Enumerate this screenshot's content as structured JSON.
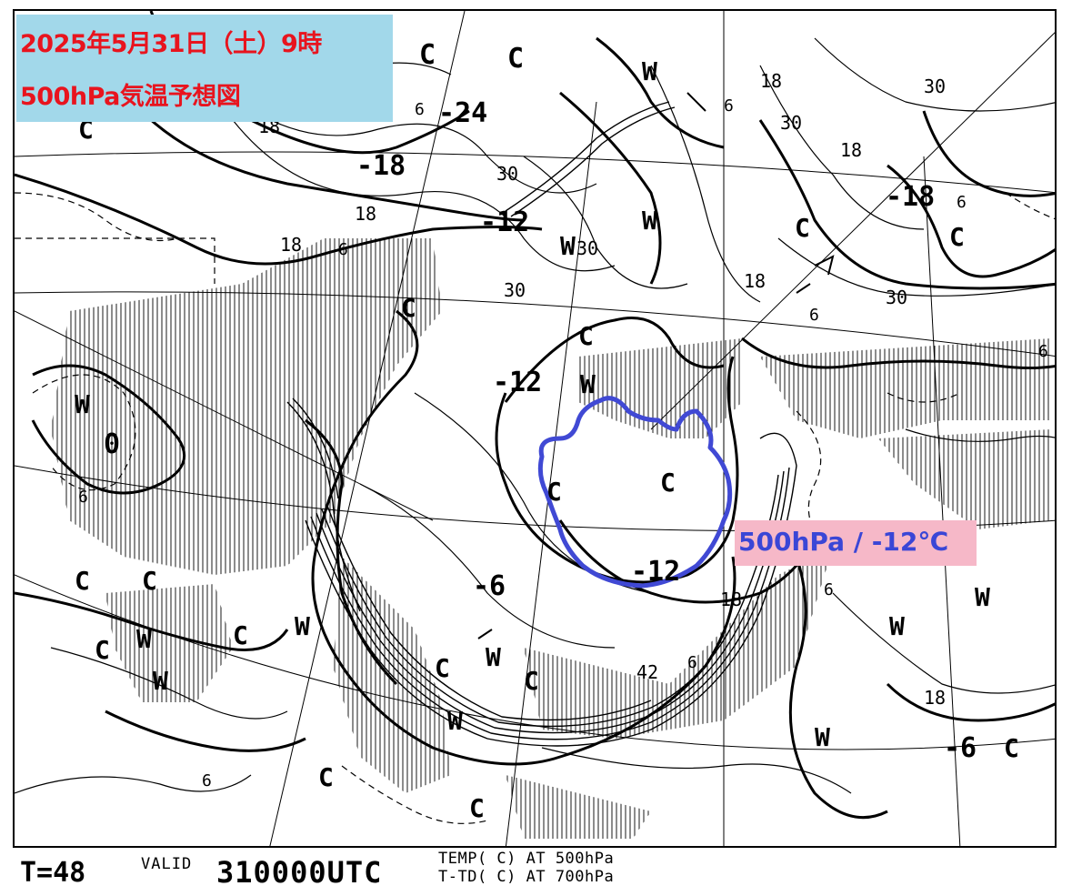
{
  "title": {
    "line1": "2025年5月31日（土）9時",
    "line2": "500hPa気温予想図"
  },
  "annotation": {
    "text": "500hPa / -12℃",
    "highlight_color": "#3a46d6"
  },
  "footer": {
    "forecast_time": "T=48",
    "valid_label": "VALID",
    "valid_time": "310000UTC",
    "legend_line1": "TEMP( C) AT 500hPa",
    "legend_line2": "T-TD( C) AT 700hPa"
  },
  "map_labels": {
    "cold_markers": [
      "C",
      "C",
      "C",
      "C",
      "C",
      "C",
      "C",
      "C",
      "C",
      "C",
      "C",
      "C",
      "C",
      "C",
      "C",
      "C",
      "C",
      "C",
      "C"
    ],
    "warm_markers": [
      "W",
      "W",
      "W",
      "W",
      "W",
      "W",
      "W",
      "W",
      "W",
      "W",
      "W",
      "W",
      "W"
    ],
    "isotherms": [
      "-24",
      "-18",
      "-12",
      "-12",
      "-12",
      "-6",
      "-6",
      "0",
      "-18"
    ],
    "dewpoint_labels": [
      "18",
      "18",
      "18",
      "18",
      "18",
      "18",
      "18",
      "18",
      "30",
      "30",
      "30",
      "30",
      "30",
      "30",
      "42",
      "6",
      "6",
      "6",
      "6",
      "6",
      "6",
      "6",
      "6",
      "6",
      "6"
    ]
  },
  "colors": {
    "title_bg": "#a2d8ea",
    "title_text": "#e8141e",
    "annotation_bg": "#f6b8c8",
    "contour": "#000000"
  }
}
